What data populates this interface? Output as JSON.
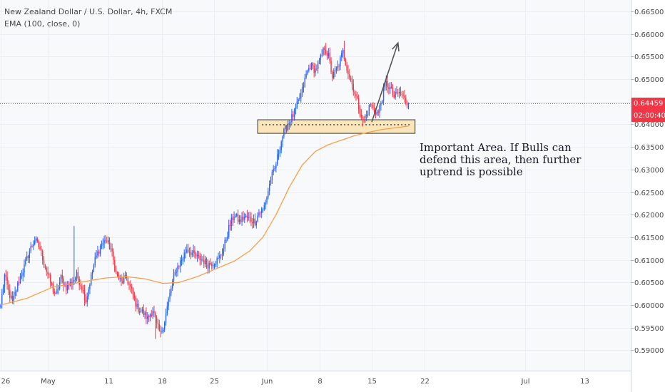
{
  "legend": {
    "symbol": "New Zealand Dollar / U.S. Dollar, 4h, FXCM",
    "indicator": "EMA (100, close, 0)"
  },
  "annotation": {
    "lines": [
      "Important Area. If Bulls can",
      "defend this area, then further",
      "uptrend is possible"
    ]
  },
  "current_price": {
    "value": "0.64459",
    "countdown": "02:00:40",
    "color": "#f23645"
  },
  "colors": {
    "up": "#2962ff",
    "down": "#f23645",
    "ema": "#f6a04d",
    "zone_fill": "#fbe3b0",
    "zone_border": "#333333",
    "arrow": "#555555"
  },
  "chart_data": {
    "type": "candlestick",
    "title": "New Zealand Dollar / U.S. Dollar, 4h, FXCM",
    "xlabel": "",
    "ylabel": "",
    "x_ticks": [
      {
        "label": "26",
        "bar": 0
      },
      {
        "label": "May",
        "bar": 36
      },
      {
        "label": "11",
        "bar": 82
      },
      {
        "label": "18",
        "bar": 123
      },
      {
        "label": "25",
        "bar": 163
      },
      {
        "label": "Jun",
        "bar": 203
      },
      {
        "label": "8",
        "bar": 243
      },
      {
        "label": "15",
        "bar": 283
      },
      {
        "label": "22",
        "bar": 323
      },
      {
        "label": "Jul",
        "bar": 400
      },
      {
        "label": "13",
        "bar": 445
      }
    ],
    "y_ticks": [
      "0.66500",
      "0.66000",
      "0.65500",
      "0.65000",
      "0.64500",
      "0.64000",
      "0.63500",
      "0.63000",
      "0.62500",
      "0.62000",
      "0.61500",
      "0.61000",
      "0.60500",
      "0.60000",
      "0.59500",
      "0.59000"
    ],
    "ylim": [
      0.5855,
      0.6675
    ],
    "bars_total": 481,
    "close_anchors": [
      [
        0,
        0.6
      ],
      [
        3,
        0.6065
      ],
      [
        6,
        0.603
      ],
      [
        9,
        0.6005
      ],
      [
        14,
        0.6055
      ],
      [
        18,
        0.6085
      ],
      [
        22,
        0.612
      ],
      [
        26,
        0.6145
      ],
      [
        30,
        0.6125
      ],
      [
        34,
        0.6085
      ],
      [
        38,
        0.605
      ],
      [
        42,
        0.602
      ],
      [
        46,
        0.606
      ],
      [
        50,
        0.604
      ],
      [
        54,
        0.605
      ],
      [
        58,
        0.6065
      ],
      [
        62,
        0.604
      ],
      [
        65,
        0.601
      ],
      [
        68,
        0.605
      ],
      [
        72,
        0.61
      ],
      [
        76,
        0.613
      ],
      [
        80,
        0.6145
      ],
      [
        84,
        0.6125
      ],
      [
        88,
        0.607
      ],
      [
        92,
        0.605
      ],
      [
        96,
        0.606
      ],
      [
        100,
        0.603
      ],
      [
        104,
        0.5995
      ],
      [
        108,
        0.5985
      ],
      [
        112,
        0.597
      ],
      [
        116,
        0.599
      ],
      [
        119,
        0.5955
      ],
      [
        122,
        0.5935
      ],
      [
        125,
        0.5965
      ],
      [
        128,
        0.601
      ],
      [
        131,
        0.605
      ],
      [
        134,
        0.608
      ],
      [
        138,
        0.61
      ],
      [
        142,
        0.6125
      ],
      [
        146,
        0.6115
      ],
      [
        150,
        0.6105
      ],
      [
        154,
        0.61
      ],
      [
        158,
        0.609
      ],
      [
        162,
        0.6095
      ],
      [
        166,
        0.61
      ],
      [
        170,
        0.6125
      ],
      [
        174,
        0.617
      ],
      [
        178,
        0.62
      ],
      [
        182,
        0.6185
      ],
      [
        186,
        0.6195
      ],
      [
        190,
        0.619
      ],
      [
        194,
        0.6185
      ],
      [
        197,
        0.6205
      ],
      [
        200,
        0.621
      ],
      [
        203,
        0.624
      ],
      [
        206,
        0.628
      ],
      [
        209,
        0.63
      ],
      [
        212,
        0.634
      ],
      [
        215,
        0.6375
      ],
      [
        218,
        0.6395
      ],
      [
        221,
        0.641
      ],
      [
        224,
        0.6425
      ],
      [
        227,
        0.645
      ],
      [
        230,
        0.6475
      ],
      [
        233,
        0.651
      ],
      [
        236,
        0.653
      ],
      [
        240,
        0.652
      ],
      [
        244,
        0.6545
      ],
      [
        247,
        0.657
      ],
      [
        250,
        0.655
      ],
      [
        253,
        0.6505
      ],
      [
        257,
        0.6525
      ],
      [
        261,
        0.656
      ],
      [
        265,
        0.6515
      ],
      [
        269,
        0.648
      ],
      [
        273,
        0.644
      ],
      [
        276,
        0.641
      ],
      [
        279,
        0.642
      ],
      [
        282,
        0.6445
      ],
      [
        285,
        0.643
      ],
      [
        288,
        0.6425
      ],
      [
        291,
        0.646
      ],
      [
        294,
        0.649
      ],
      [
        297,
        0.648
      ],
      [
        300,
        0.646
      ],
      [
        303,
        0.647
      ],
      [
        306,
        0.6465
      ],
      [
        309,
        0.645
      ],
      [
        311,
        0.6446
      ]
    ],
    "highlights": [
      {
        "bar": 56,
        "high": 0.6175
      },
      {
        "bar": 118,
        "low": 0.5925
      },
      {
        "bar": 248,
        "high": 0.658
      },
      {
        "bar": 262,
        "high": 0.6585
      },
      {
        "bar": 276,
        "low": 0.6395
      }
    ],
    "ema": {
      "name": "EMA (100, close, 0)",
      "points": [
        [
          0,
          0.6
        ],
        [
          20,
          0.6015
        ],
        [
          40,
          0.604
        ],
        [
          60,
          0.605
        ],
        [
          80,
          0.606
        ],
        [
          96,
          0.6063
        ],
        [
          110,
          0.6058
        ],
        [
          124,
          0.6048
        ],
        [
          136,
          0.605
        ],
        [
          150,
          0.6063
        ],
        [
          164,
          0.608
        ],
        [
          178,
          0.6097
        ],
        [
          190,
          0.612
        ],
        [
          200,
          0.615
        ],
        [
          210,
          0.62
        ],
        [
          220,
          0.626
        ],
        [
          230,
          0.631
        ],
        [
          240,
          0.634
        ],
        [
          250,
          0.6355
        ],
        [
          260,
          0.6365
        ],
        [
          270,
          0.6375
        ],
        [
          280,
          0.6382
        ],
        [
          290,
          0.6388
        ],
        [
          300,
          0.6392
        ],
        [
          311,
          0.6396
        ]
      ]
    },
    "support_zone": {
      "bar_from": 196,
      "bar_to": 316,
      "low": 0.638,
      "high": 0.641,
      "mid": 0.6399
    },
    "arrow": {
      "from": [
        283,
        0.6405
      ],
      "to": [
        303,
        0.658
      ]
    },
    "current_line": 0.64459
  }
}
